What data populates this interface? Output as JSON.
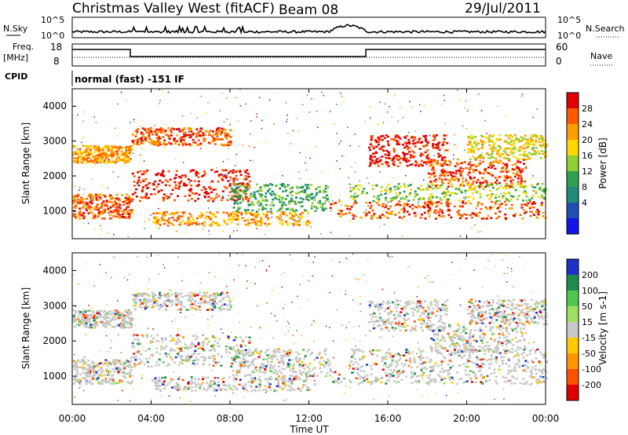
{
  "header": {
    "station": "Christmas Valley West (fitACF)",
    "beam": "Beam 08",
    "date": "29/Jul/2011"
  },
  "top_panels": {
    "nsky_label": "N.Sky",
    "nsky_ticks": [
      "10^5",
      "10^0"
    ],
    "nsearch_label": "N.Search",
    "nsearch_ticks": [
      "10^5",
      "10^0"
    ],
    "freq_label": "Freq.",
    "freq_unit": "[MHz]",
    "freq_ticks": [
      "18",
      "8"
    ],
    "nave_label": "Nave",
    "nave_ticks": [
      "60",
      "0"
    ],
    "cpid_label": "CPID",
    "cpid_text": "normal (fast) -151 IF"
  },
  "chart_data": [
    {
      "type": "heatmap",
      "name": "power-panel",
      "ylabel": "Slant Range [km]",
      "yticks": [
        "4000",
        "3000",
        "2000",
        "1000"
      ],
      "colorbar_label": "Power [dB]",
      "colorbar_ticks": [
        "28",
        "24",
        "20",
        "16",
        "12",
        "8",
        "4"
      ],
      "colorbar_colors": [
        "#e00000",
        "#ff5a00",
        "#ff9e00",
        "#ffd800",
        "#90d030",
        "#30a050",
        "#1e8c78",
        "#1e50b4",
        "#1414e6"
      ],
      "ylim": [
        200,
        4500
      ]
    },
    {
      "type": "heatmap",
      "name": "velocity-panel",
      "ylabel": "Slant Range [km]",
      "yticks": [
        "4000",
        "3000",
        "2000",
        "1000"
      ],
      "colorbar_label": "Velocity [m s-1]",
      "colorbar_ticks": [
        "200",
        "100",
        "50",
        "15",
        "-15",
        "-50",
        "-100",
        "-200"
      ],
      "colorbar_colors": [
        "#1e32c8",
        "#1e8c50",
        "#50c850",
        "#a0e060",
        "#c8c8c8",
        "#ffc800",
        "#ff9600",
        "#ff5000",
        "#e00000"
      ],
      "ylim": [
        200,
        4500
      ]
    }
  ],
  "x_axis": {
    "ticks": [
      "00:00",
      "04:00",
      "08:00",
      "12:00",
      "16:00",
      "20:00",
      "00:00"
    ],
    "label": "Time UT"
  }
}
